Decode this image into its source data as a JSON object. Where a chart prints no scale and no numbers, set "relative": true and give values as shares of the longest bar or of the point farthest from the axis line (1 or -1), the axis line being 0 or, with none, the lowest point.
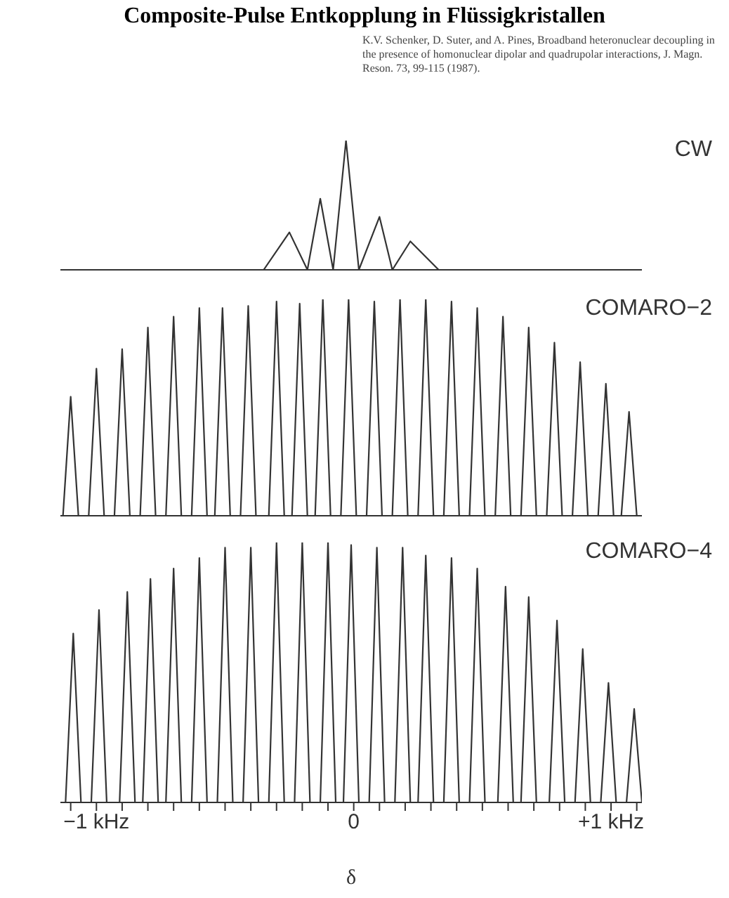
{
  "chart_data": [
    {
      "type": "line",
      "title": "Composite-Pulse Entkopplung in Flüssigkristallen",
      "annotations": [
        "K.V. Schenker, D. Suter, and A. Pines, Broadband heteronuclear decoupling in the presence of homonuclear dipolar and quadrupolar interactions, J. Magn. Reson. 73, 99-115 (1987)."
      ],
      "relative": true,
      "xlim": [
        -1.14,
        1.12
      ],
      "tick_labels": false,
      "series": [
        {
          "name": "CW",
          "color": "#333333",
          "x": [
            -0.46,
            -0.35,
            -0.25,
            -0.18,
            -0.13,
            -0.08,
            -0.03,
            0.02,
            0.1,
            0.15,
            0.22,
            0.33,
            0.39
          ],
          "values": [
            0,
            0,
            0.29,
            0,
            0.55,
            0,
            1,
            0,
            0.41,
            0,
            0.22,
            0,
            0
          ]
        }
      ]
    },
    {
      "type": "line",
      "relative": true,
      "xlim": [
        -1.14,
        1.12
      ],
      "tick_labels": false,
      "series": [
        {
          "name": "COMARO−2",
          "color": "#333333",
          "x": [
            -1.13,
            -1.1,
            -1.07,
            -1.03,
            -1.0,
            -0.97,
            -0.93,
            -0.9,
            -0.87,
            -0.83,
            -0.8,
            -0.77,
            -0.73,
            -0.7,
            -0.67,
            -0.63,
            -0.6,
            -0.57,
            -0.54,
            -0.51,
            -0.48,
            -0.44,
            -0.41,
            -0.38,
            -0.33,
            -0.3,
            -0.27,
            -0.24,
            -0.21,
            -0.18,
            -0.15,
            -0.12,
            -0.09,
            -0.05,
            -0.02,
            0.01,
            0.05,
            0.08,
            0.11,
            0.15,
            0.18,
            0.21,
            0.25,
            0.28,
            0.31,
            0.35,
            0.38,
            0.41,
            0.45,
            0.48,
            0.51,
            0.55,
            0.58,
            0.61,
            0.65,
            0.68,
            0.71,
            0.75,
            0.78,
            0.81,
            0.85,
            0.88,
            0.91,
            0.95,
            0.98,
            1.01,
            1.04,
            1.07,
            1.1
          ],
          "values": [
            0,
            0.55,
            0,
            0,
            0.68,
            0,
            0,
            0.77,
            0,
            0,
            0.87,
            0,
            0,
            0.92,
            0,
            0,
            0.96,
            0,
            0,
            0.96,
            0,
            0,
            0.97,
            0,
            0,
            0.99,
            0,
            0,
            0.98,
            0,
            0,
            1,
            0,
            0,
            1,
            0,
            0,
            0.99,
            0,
            0,
            1,
            0,
            0,
            1,
            0,
            0,
            0.99,
            0,
            0,
            0.96,
            0,
            0,
            0.92,
            0,
            0,
            0.87,
            0,
            0,
            0.8,
            0,
            0,
            0.71,
            0,
            0,
            0.61,
            0,
            0,
            0.48,
            0
          ]
        }
      ]
    },
    {
      "type": "line",
      "relative": true,
      "xlim": [
        -1.14,
        1.12
      ],
      "tick_labels": "x",
      "xlabel": "δ",
      "xticks": [
        {
          "value": -1.1,
          "label": null
        },
        {
          "value": -1,
          "label": "−1 kHz"
        },
        {
          "value": -0.9,
          "label": null
        },
        {
          "value": -0.8,
          "label": null
        },
        {
          "value": -0.7,
          "label": null
        },
        {
          "value": -0.6,
          "label": null
        },
        {
          "value": -0.5,
          "label": null
        },
        {
          "value": -0.4,
          "label": null
        },
        {
          "value": -0.3,
          "label": null
        },
        {
          "value": -0.2,
          "label": null
        },
        {
          "value": -0.1,
          "label": null
        },
        0,
        {
          "value": 0.1,
          "label": null
        },
        {
          "value": 0.2,
          "label": null
        },
        {
          "value": 0.3,
          "label": null
        },
        {
          "value": 0.4,
          "label": null
        },
        {
          "value": 0.5,
          "label": null
        },
        {
          "value": 0.6,
          "label": null
        },
        {
          "value": 0.7,
          "label": null
        },
        {
          "value": 0.8,
          "label": null
        },
        {
          "value": 0.9,
          "label": null
        },
        {
          "value": 1,
          "label": "+1 kHz"
        },
        {
          "value": 1.1,
          "label": null
        }
      ],
      "series": [
        {
          "name": "COMARO−4",
          "color": "#333333",
          "x": [
            -1.12,
            -1.09,
            -1.06,
            -1.02,
            -0.99,
            -0.96,
            -0.91,
            -0.88,
            -0.85,
            -0.82,
            -0.79,
            -0.76,
            -0.73,
            -0.7,
            -0.67,
            -0.63,
            -0.6,
            -0.57,
            -0.53,
            -0.5,
            -0.47,
            -0.43,
            -0.4,
            -0.37,
            -0.33,
            -0.3,
            -0.27,
            -0.23,
            -0.2,
            -0.17,
            -0.13,
            -0.1,
            -0.07,
            -0.04,
            -0.01,
            0.02,
            0.06,
            0.09,
            0.12,
            0.16,
            0.19,
            0.22,
            0.25,
            0.28,
            0.31,
            0.35,
            0.38,
            0.41,
            0.45,
            0.48,
            0.51,
            0.56,
            0.59,
            0.62,
            0.65,
            0.68,
            0.71,
            0.76,
            0.79,
            0.82,
            0.86,
            0.89,
            0.92,
            0.96,
            0.99,
            1.02,
            1.06,
            1.09,
            1.12
          ],
          "values": [
            0,
            0.65,
            0,
            0,
            0.74,
            0,
            0,
            0.81,
            0,
            0,
            0.86,
            0,
            0,
            0.9,
            0,
            0,
            0.94,
            0,
            0,
            0.98,
            0,
            0,
            0.98,
            0,
            0,
            1,
            0,
            0,
            1,
            0,
            0,
            1,
            0,
            0,
            0.99,
            0,
            0,
            0.98,
            0,
            0,
            0.98,
            0,
            0,
            0.95,
            0,
            0,
            0.94,
            0,
            0,
            0.9,
            0,
            0,
            0.83,
            0,
            0,
            0.79,
            0,
            0,
            0.7,
            0,
            0,
            0.59,
            0,
            0,
            0.46,
            0,
            0,
            0.36,
            0
          ]
        }
      ]
    }
  ]
}
